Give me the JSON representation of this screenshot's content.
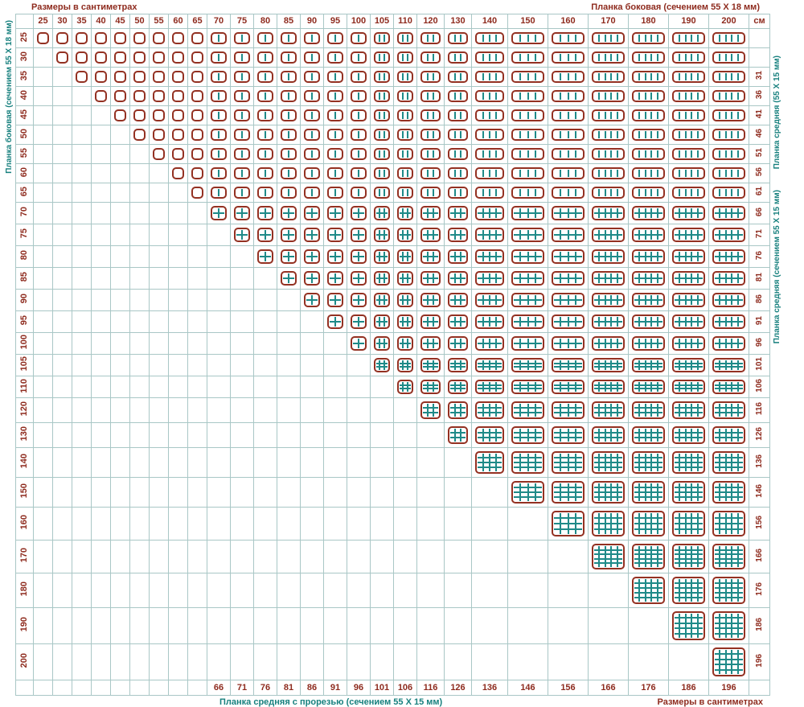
{
  "page": {
    "top_left_label": "Размеры в сантиметрах",
    "top_right_label": "Планка боковая (сечением 55 Х 18 мм)",
    "left_vertical_label": "Планка боковая (сечением 55 Х 18 мм)",
    "right_vertical_labels": [
      "Планка средняя (55 Х 15 мм)",
      "Планка средняя (сечением 55 Х 15 мм)"
    ],
    "bottom_center_label": "Планка средняя с прорезью (сечением 55 Х 15 мм)",
    "bottom_right_label": "Размеры в сантиметрах",
    "unit_label": "см"
  },
  "chart_data": {
    "type": "table",
    "title": "Размеры в сантиметрах",
    "column_axis_label": "Планка боковая (сечением 55 Х 18 мм)",
    "row_axis_label": "Планка боковая (сечением 55 Х 18 мм)",
    "bottom_axis_label": "Планка средняя с прорезью (сечением 55 Х 15 мм)",
    "right_axis_label": "Планка средняя (сечением 55 Х 15 мм)",
    "unit": "см",
    "columns": [
      25,
      30,
      35,
      40,
      45,
      50,
      55,
      60,
      65,
      70,
      75,
      80,
      85,
      90,
      95,
      100,
      105,
      110,
      120,
      130,
      140,
      150,
      160,
      170,
      180,
      190,
      200
    ],
    "rows": [
      25,
      30,
      35,
      40,
      45,
      50,
      55,
      60,
      65,
      70,
      75,
      80,
      85,
      90,
      95,
      100,
      105,
      110,
      120,
      130,
      140,
      150,
      160,
      170,
      180,
      190,
      200
    ],
    "bottom_values": [
      null,
      null,
      null,
      null,
      null,
      null,
      null,
      null,
      null,
      66,
      71,
      76,
      81,
      86,
      91,
      96,
      101,
      106,
      116,
      126,
      136,
      146,
      156,
      166,
      176,
      186,
      196
    ],
    "right_values": [
      null,
      null,
      31,
      36,
      41,
      46,
      51,
      56,
      61,
      66,
      71,
      76,
      81,
      86,
      91,
      96,
      101,
      106,
      116,
      126,
      136,
      146,
      156,
      166,
      176,
      186,
      196
    ],
    "cell_rule": "lattice icon present when column >= row",
    "divider_thresholds": [
      70,
      105,
      140,
      170
    ]
  },
  "colors": {
    "header_text": "#8e2b1e",
    "accent_teal": "#17807e",
    "grid_line": "#a9c7c6",
    "icon_border": "#933122",
    "icon_line": "#1f8a88"
  }
}
